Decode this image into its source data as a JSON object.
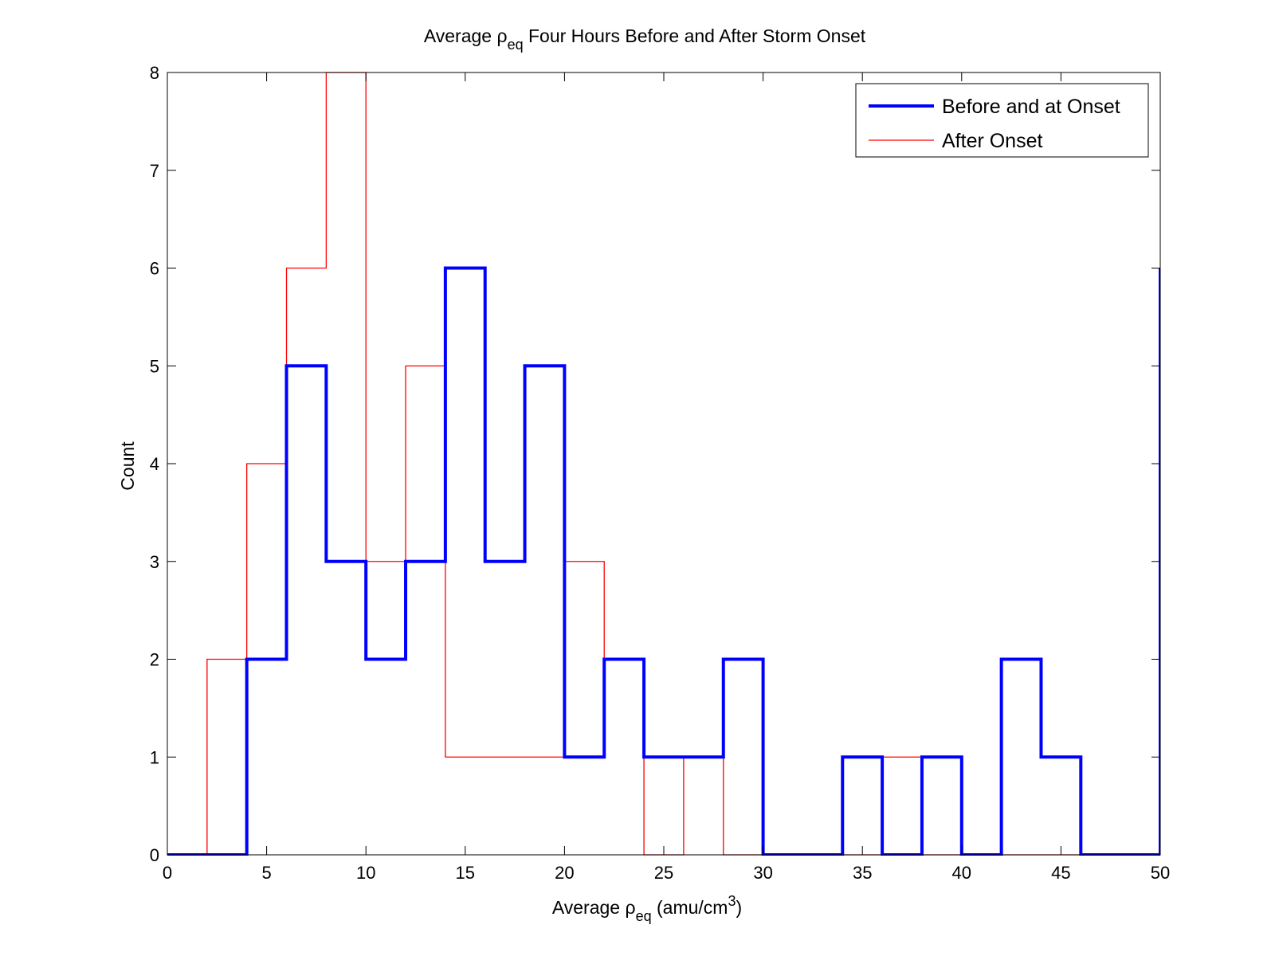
{
  "chart_data": {
    "type": "histogram",
    "title": {
      "prefix": "Average ρ",
      "subscript": "eq",
      "suffix": " Four Hours Before and After Storm Onset"
    },
    "xlabel": {
      "prefix": "Average ρ",
      "subscript": "eq",
      "middle": " (amu/cm",
      "superscript": "3",
      "suffix": ")"
    },
    "ylabel": "Count",
    "xlim": [
      0,
      50
    ],
    "ylim": [
      0,
      8
    ],
    "xticks": [
      0,
      5,
      10,
      15,
      20,
      25,
      30,
      35,
      40,
      45,
      50
    ],
    "yticks": [
      0,
      1,
      2,
      3,
      4,
      5,
      6,
      7,
      8
    ],
    "bin_edges": [
      0,
      2,
      4,
      6,
      8,
      10,
      12,
      14,
      16,
      18,
      20,
      22,
      24,
      26,
      28,
      30,
      32,
      34,
      36,
      38,
      40,
      42,
      44,
      46,
      48,
      50
    ],
    "grid": false,
    "legend_position": "top-right",
    "series": [
      {
        "name": "Before and at Onset",
        "color": "#0000ff",
        "style": "thick",
        "counts": [
          0,
          0,
          2,
          5,
          3,
          2,
          3,
          6,
          3,
          5,
          1,
          2,
          1,
          1,
          2,
          0,
          0,
          1,
          0,
          1,
          0,
          2,
          1,
          0,
          0
        ],
        "final_edge_value": 6
      },
      {
        "name": "After Onset",
        "color": "#ff0000",
        "style": "thin",
        "counts": [
          0,
          2,
          4,
          6,
          8,
          3,
          5,
          1,
          1,
          1,
          3,
          2,
          0,
          1,
          0,
          0,
          0,
          0,
          1,
          0,
          0,
          0,
          0,
          0,
          0
        ],
        "final_edge_value": 0
      }
    ]
  }
}
